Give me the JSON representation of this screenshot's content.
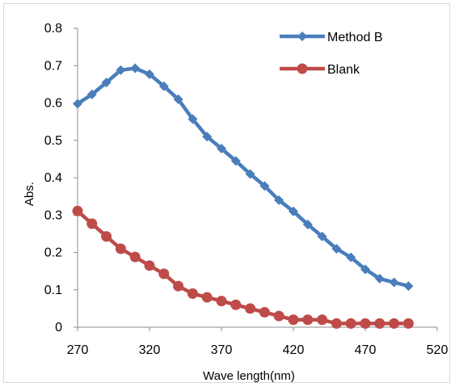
{
  "chart_data": {
    "type": "line",
    "xlabel": "Wave length(nm)",
    "ylabel": "Abs.",
    "xlim": [
      270,
      520
    ],
    "ylim": [
      0,
      0.8
    ],
    "x_ticks": [
      "270",
      "320",
      "370",
      "420",
      "470",
      "520"
    ],
    "y_ticks": [
      "0",
      "0.1",
      "0.2",
      "0.3",
      "0.4",
      "0.5",
      "0.6",
      "0.7",
      "0.8"
    ],
    "legend_position": "top-right",
    "grid": false,
    "series": [
      {
        "name": "Method B",
        "color": "#4a7ebb",
        "marker": "diamond",
        "x": [
          270,
          280,
          290,
          300,
          310,
          320,
          330,
          340,
          350,
          360,
          370,
          380,
          390,
          400,
          410,
          420,
          430,
          440,
          450,
          460,
          470,
          480,
          490,
          500
        ],
        "values": [
          0.598,
          0.623,
          0.655,
          0.688,
          0.693,
          0.677,
          0.645,
          0.61,
          0.557,
          0.51,
          0.478,
          0.445,
          0.41,
          0.378,
          0.34,
          0.31,
          0.275,
          0.243,
          0.21,
          0.187,
          0.155,
          0.13,
          0.12,
          0.11
        ]
      },
      {
        "name": "Blank",
        "color": "#be4b48",
        "marker": "circle",
        "x": [
          270,
          280,
          290,
          300,
          310,
          320,
          330,
          340,
          350,
          360,
          370,
          380,
          390,
          400,
          410,
          420,
          430,
          440,
          450,
          460,
          470,
          480,
          490,
          500
        ],
        "values": [
          0.311,
          0.277,
          0.243,
          0.21,
          0.188,
          0.165,
          0.143,
          0.11,
          0.09,
          0.08,
          0.07,
          0.06,
          0.05,
          0.04,
          0.03,
          0.02,
          0.02,
          0.02,
          0.01,
          0.01,
          0.01,
          0.01,
          0.01,
          0.01
        ]
      }
    ]
  }
}
